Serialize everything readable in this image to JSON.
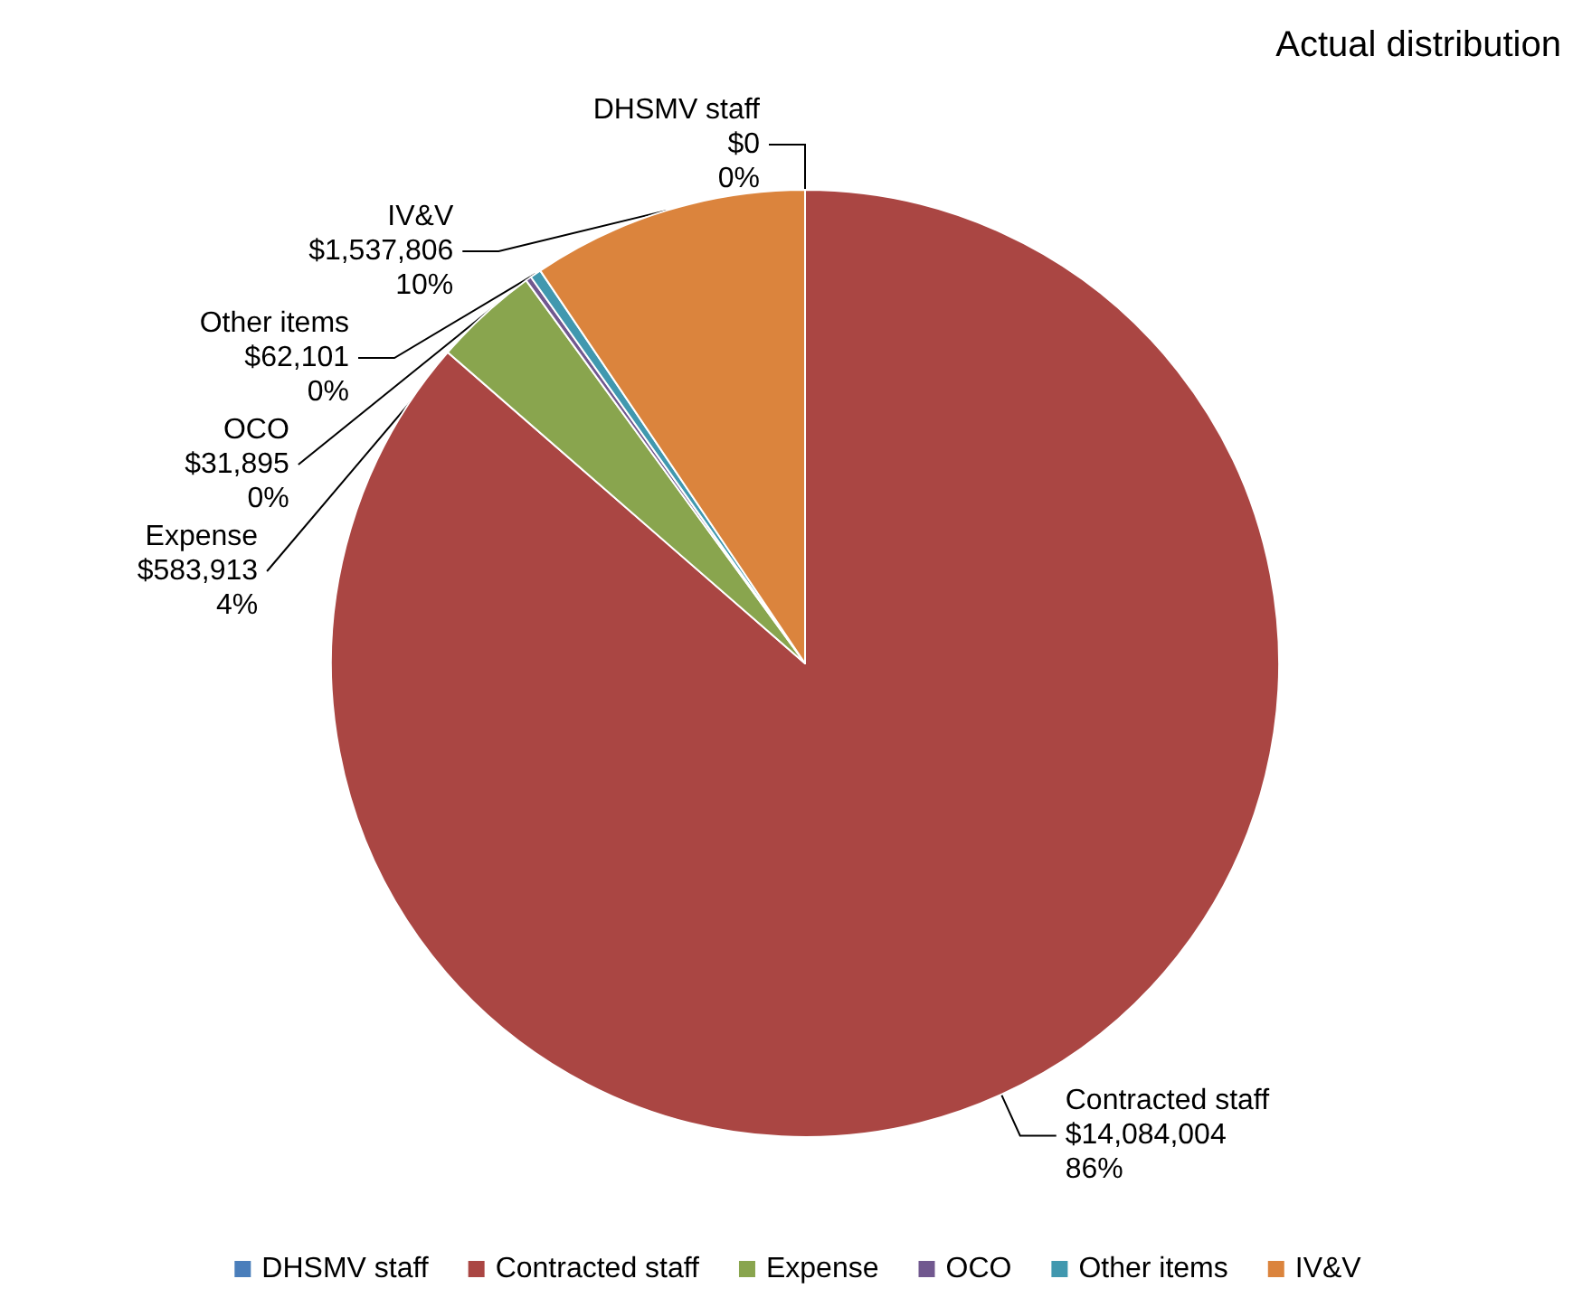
{
  "chart_data": {
    "type": "pie",
    "title": "Actual distribution",
    "categories": [
      "DHSMV staff",
      "Contracted staff",
      "Expense",
      "OCO",
      "Other items",
      "IV&V"
    ],
    "values": [
      0,
      14084004,
      583913,
      31895,
      62101,
      1537806
    ],
    "value_labels": [
      "$0\n0%",
      "$14,084,004\n86%",
      "$583,913\n4%",
      "$31,895\n0%",
      "$62,101\n0%",
      "$1,537,806\n10%"
    ],
    "colors": [
      "#4a7ebb",
      "#aa4643",
      "#89a54e",
      "#71588f",
      "#4198af",
      "#db843d"
    ],
    "legend": "bottom"
  }
}
